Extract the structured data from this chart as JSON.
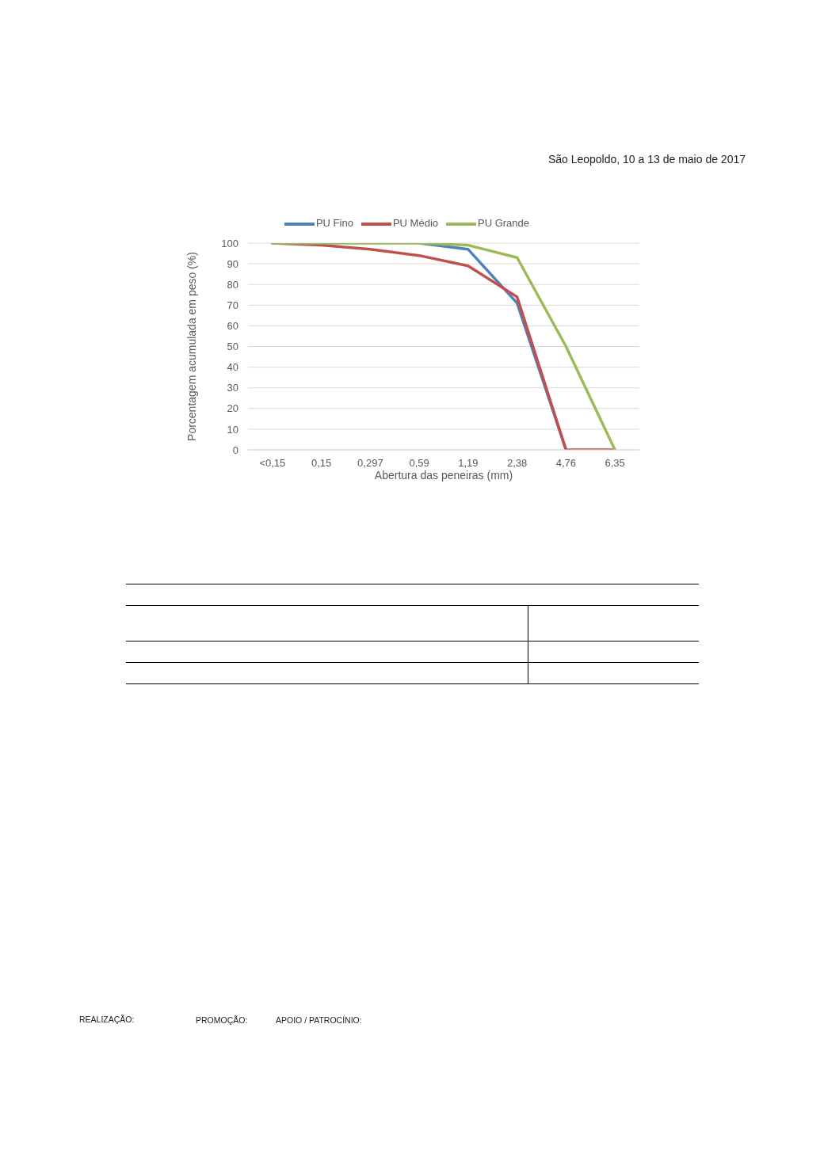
{
  "chart_data": {
    "type": "line",
    "xlabel": "Abertura das peneiras (mm)",
    "ylabel": "Porcentagem acumulada em peso (%)",
    "categories": [
      "<0,15",
      "0,15",
      "0,297",
      "0,59",
      "1,19",
      "2,38",
      "4,76",
      "6,35"
    ],
    "series": [
      {
        "name": "PU Fino",
        "color": "#4f81bd",
        "values": [
          null,
          null,
          null,
          100,
          97,
          71,
          0,
          null
        ]
      },
      {
        "name": "PU Médio",
        "color": "#c0504d",
        "values": [
          100,
          99,
          97,
          94,
          89,
          74,
          0,
          0
        ]
      },
      {
        "name": "PU Grande",
        "color": "#9bbb59",
        "values": [
          100,
          100,
          100,
          100,
          99,
          93,
          50,
          0
        ]
      }
    ],
    "ylim": [
      0,
      100
    ],
    "yticks": [
      0,
      10,
      20,
      30,
      40,
      50,
      60,
      70,
      80,
      90,
      100
    ],
    "grid": "y",
    "legend": "top",
    "annotations": [
      "São Leopoldo, 10 a 13 de maio de 2017",
      "REALIZAÇÃO:",
      "PROMOÇÃO:",
      "APOIO / PATROCÍNIO:"
    ]
  }
}
